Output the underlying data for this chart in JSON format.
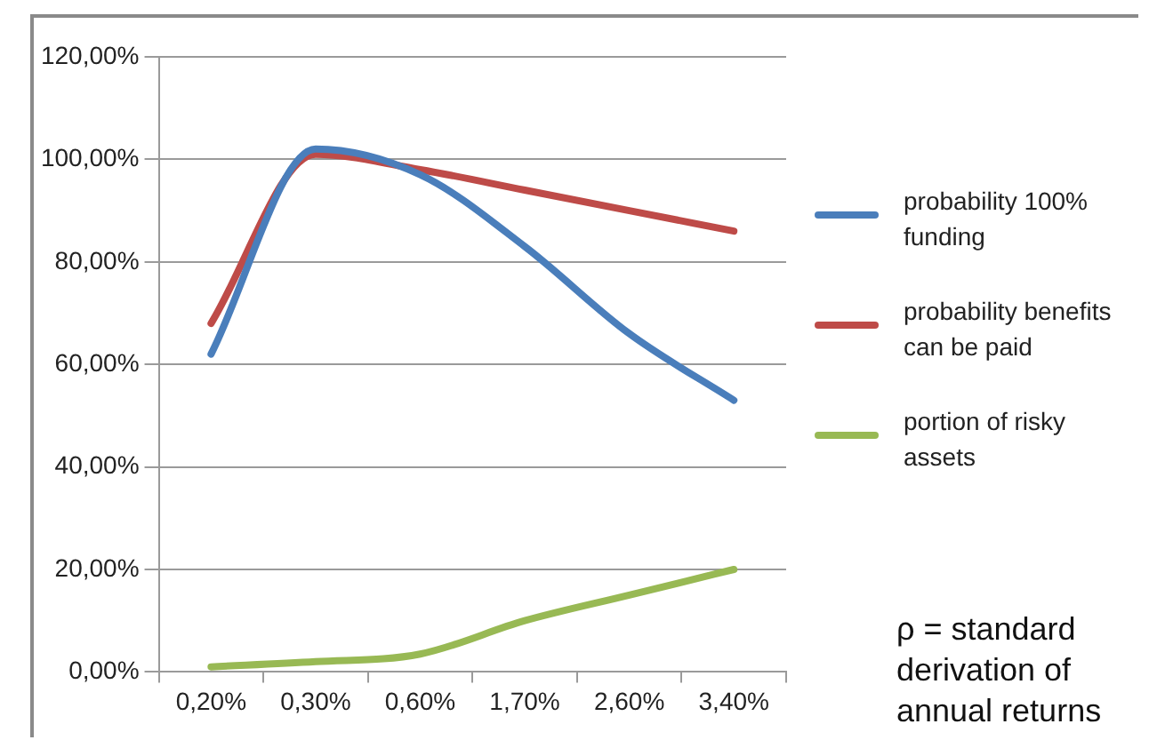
{
  "chart_data": {
    "type": "line",
    "categories": [
      "0,20%",
      "0,30%",
      "0,60%",
      "1,70%",
      "2,60%",
      "3,40%"
    ],
    "series": [
      {
        "name": "probability 100% funding",
        "color": "#4a7ebb",
        "values": [
          62,
          102,
          97,
          83,
          66,
          53
        ]
      },
      {
        "name": "probability benefits can be paid",
        "color": "#be4b48",
        "values": [
          68,
          101,
          98,
          94,
          90,
          86
        ]
      },
      {
        "name": "portion of risky assets",
        "color": "#98b954",
        "values": [
          1,
          2,
          3.5,
          10,
          15,
          20
        ]
      }
    ],
    "ylim": [
      0,
      120
    ],
    "yticks": [
      {
        "value": 0,
        "label": "0,00%"
      },
      {
        "value": 20,
        "label": "20,00%"
      },
      {
        "value": 40,
        "label": "40,00%"
      },
      {
        "value": 60,
        "label": "60,00%"
      },
      {
        "value": 80,
        "label": "80,00%"
      },
      {
        "value": 100,
        "label": "100,00%"
      },
      {
        "value": 120,
        "label": "120,00%"
      }
    ],
    "grid": "y",
    "legend": "right",
    "marker": "none",
    "line_style": "solid",
    "annotations": [
      "ρ = standard derivation of annual returns"
    ]
  }
}
